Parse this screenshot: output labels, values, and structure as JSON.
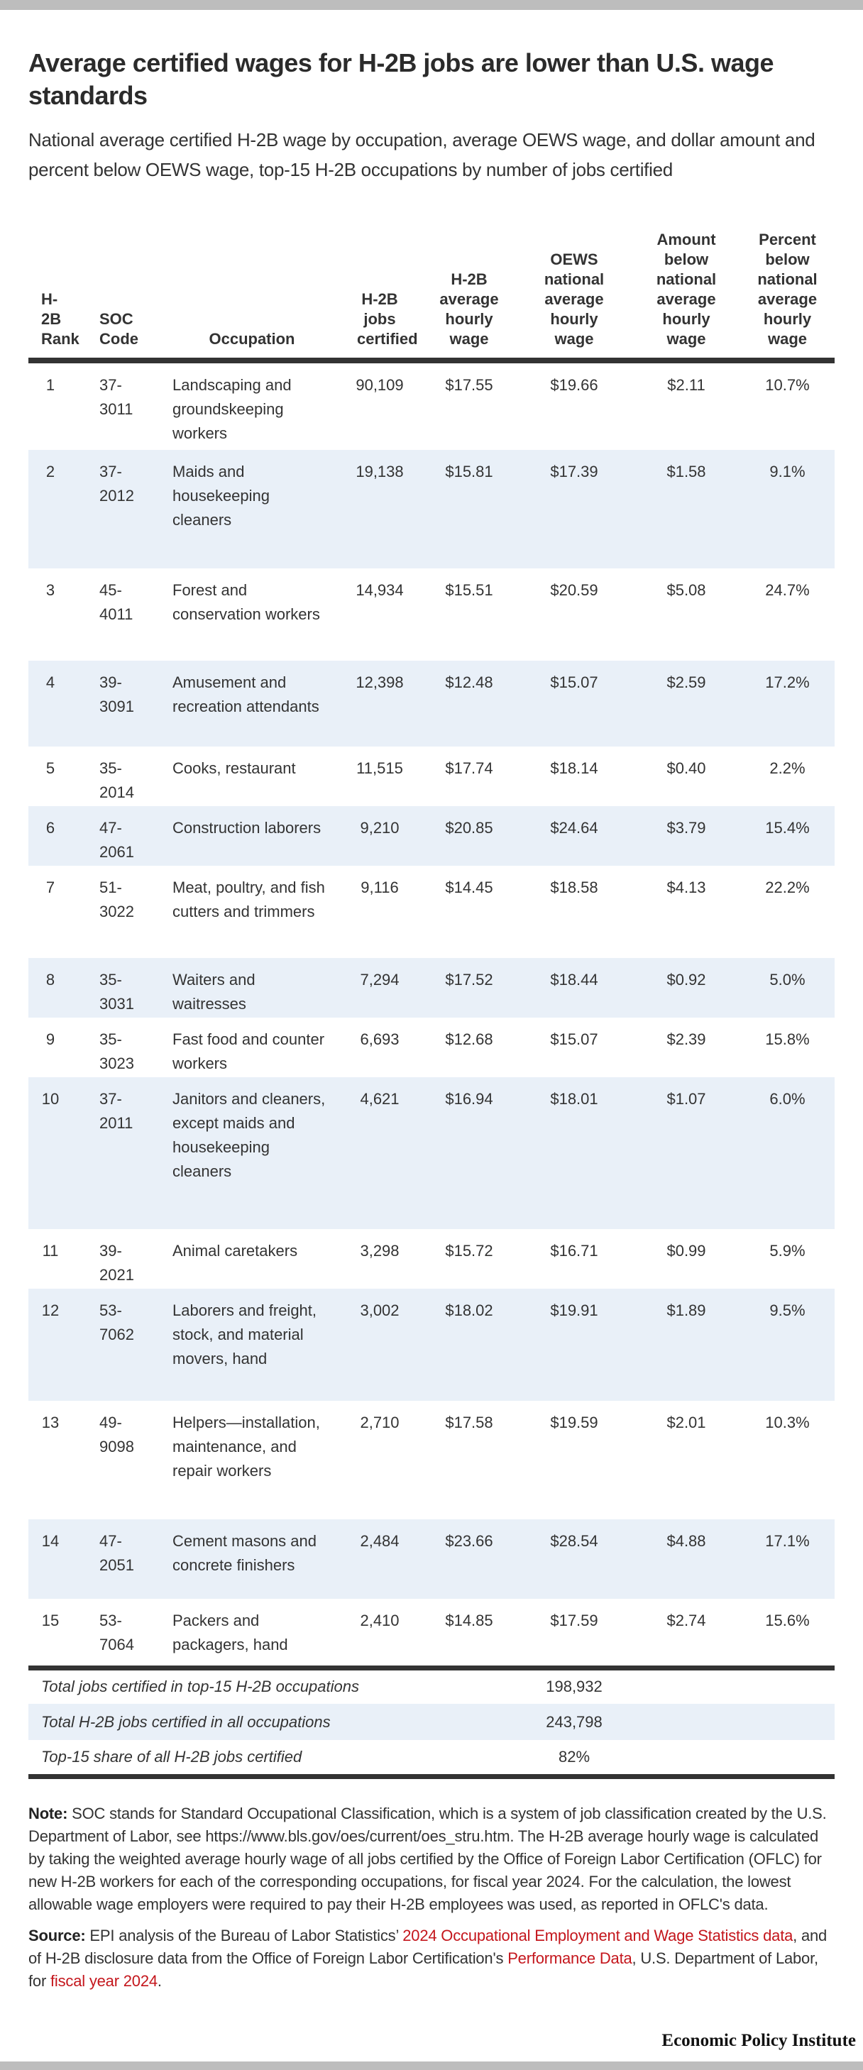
{
  "title": "Average certified wages for H-2B jobs are lower than U.S. wage standards",
  "subtitle": "National average certified H-2B wage by occupation, average OEWS wage, and dollar amount and percent below OEWS wage, top-15 H-2B occupations by number of jobs certified",
  "colors": {
    "row_alt": "#e9f0f8",
    "link": "#c4161c",
    "rule": "#333333"
  },
  "table": {
    "headers": [
      "H-2B Rank",
      "SOC Code",
      "Occupation",
      "H-2B jobs certified",
      "H-2B average hourly wage",
      "OEWS national average hourly wage",
      "Amount below national average hourly wage",
      "Percent below national average hourly wage"
    ],
    "rows": [
      {
        "rank": "1",
        "soc": "37-3011",
        "occupation": "Landscaping and groundskeeping workers",
        "jobs": "90,109",
        "h2b_wage": "$17.55",
        "oews_wage": "$19.66",
        "amount_below": "$2.11",
        "percent_below": "10.7%"
      },
      {
        "rank": "2",
        "soc": "37-2012",
        "occupation": "Maids and housekeeping cleaners",
        "jobs": "19,138",
        "h2b_wage": "$15.81",
        "oews_wage": "$17.39",
        "amount_below": "$1.58",
        "percent_below": "9.1%"
      },
      {
        "rank": "3",
        "soc": "45-4011",
        "occupation": "Forest and conservation workers",
        "jobs": "14,934",
        "h2b_wage": "$15.51",
        "oews_wage": "$20.59",
        "amount_below": "$5.08",
        "percent_below": "24.7%"
      },
      {
        "rank": "4",
        "soc": "39-3091",
        "occupation": "Amusement and recreation attendants",
        "jobs": "12,398",
        "h2b_wage": "$12.48",
        "oews_wage": "$15.07",
        "amount_below": "$2.59",
        "percent_below": "17.2%"
      },
      {
        "rank": "5",
        "soc": "35-2014",
        "occupation": "Cooks, restaurant",
        "jobs": "11,515",
        "h2b_wage": "$17.74",
        "oews_wage": "$18.14",
        "amount_below": "$0.40",
        "percent_below": "2.2%"
      },
      {
        "rank": "6",
        "soc": "47-2061",
        "occupation": "Construction laborers",
        "jobs": "9,210",
        "h2b_wage": "$20.85",
        "oews_wage": "$24.64",
        "amount_below": "$3.79",
        "percent_below": "15.4%"
      },
      {
        "rank": "7",
        "soc": "51-3022",
        "occupation": "Meat, poultry, and fish cutters and trimmers",
        "jobs": "9,116",
        "h2b_wage": "$14.45",
        "oews_wage": "$18.58",
        "amount_below": "$4.13",
        "percent_below": "22.2%"
      },
      {
        "rank": "8",
        "soc": "35-3031",
        "occupation": "Waiters and waitresses",
        "jobs": "7,294",
        "h2b_wage": "$17.52",
        "oews_wage": "$18.44",
        "amount_below": "$0.92",
        "percent_below": "5.0%"
      },
      {
        "rank": "9",
        "soc": "35-3023",
        "occupation": "Fast food and counter workers",
        "jobs": "6,693",
        "h2b_wage": "$12.68",
        "oews_wage": "$15.07",
        "amount_below": "$2.39",
        "percent_below": "15.8%"
      },
      {
        "rank": "10",
        "soc": "37-2011",
        "occupation": "Janitors and cleaners, except maids and housekeeping cleaners",
        "jobs": "4,621",
        "h2b_wage": "$16.94",
        "oews_wage": "$18.01",
        "amount_below": "$1.07",
        "percent_below": "6.0%"
      },
      {
        "rank": "11",
        "soc": "39-2021",
        "occupation": "Animal caretakers",
        "jobs": "3,298",
        "h2b_wage": "$15.72",
        "oews_wage": "$16.71",
        "amount_below": "$0.99",
        "percent_below": "5.9%"
      },
      {
        "rank": "12",
        "soc": "53-7062",
        "occupation": "Laborers and freight, stock, and material movers, hand",
        "jobs": "3,002",
        "h2b_wage": "$18.02",
        "oews_wage": "$19.91",
        "amount_below": "$1.89",
        "percent_below": "9.5%"
      },
      {
        "rank": "13",
        "soc": "49-9098",
        "occupation": "Helpers—installation, maintenance, and repair workers",
        "jobs": "2,710",
        "h2b_wage": "$17.58",
        "oews_wage": "$19.59",
        "amount_below": "$2.01",
        "percent_below": "10.3%"
      },
      {
        "rank": "14",
        "soc": "47-2051",
        "occupation": "Cement masons and concrete finishers",
        "jobs": "2,484",
        "h2b_wage": "$23.66",
        "oews_wage": "$28.54",
        "amount_below": "$4.88",
        "percent_below": "17.1%"
      },
      {
        "rank": "15",
        "soc": "53-7064",
        "occupation": "Packers and packagers, hand",
        "jobs": "2,410",
        "h2b_wage": "$14.85",
        "oews_wage": "$17.59",
        "amount_below": "$2.74",
        "percent_below": "15.6%"
      }
    ],
    "summary": [
      {
        "label": "Total jobs certified in top-15 H-2B occupations",
        "value": "198,932"
      },
      {
        "label": "Total H-2B jobs certified in all occupations",
        "value": "243,798"
      },
      {
        "label": "Top-15 share of all H-2B jobs certified",
        "value": "82%"
      }
    ]
  },
  "note": {
    "label": "Note:",
    "text": " SOC stands for Standard Occupational Classification, which is a system of job classification created by the U.S. Department of Labor, see https://www.bls.gov/oes/current/oes_stru.htm. The H-2B average hourly wage is calculated by taking the weighted average hourly wage of all jobs certified by the Office of Foreign Labor Certification (OFLC) for new H-2B workers for each of the corresponding occupations, for fiscal year 2024. For the calculation, the lowest allowable wage employers were required to pay their H-2B employees was used, as reported in OFLC's data."
  },
  "source": {
    "label": "Source:",
    "t1": " EPI analysis of the Bureau of Labor Statistics’ ",
    "link1": "2024 Occupational Employment and Wage Statistics data",
    "t2": ", and of H-2B disclosure data from the Office of Foreign Labor Certification's ",
    "link2": "Performance Data",
    "t3": ", U.S. Department of Labor, for ",
    "link3": "fiscal year 2024",
    "t4": "."
  },
  "logo": "Economic Policy Institute"
}
